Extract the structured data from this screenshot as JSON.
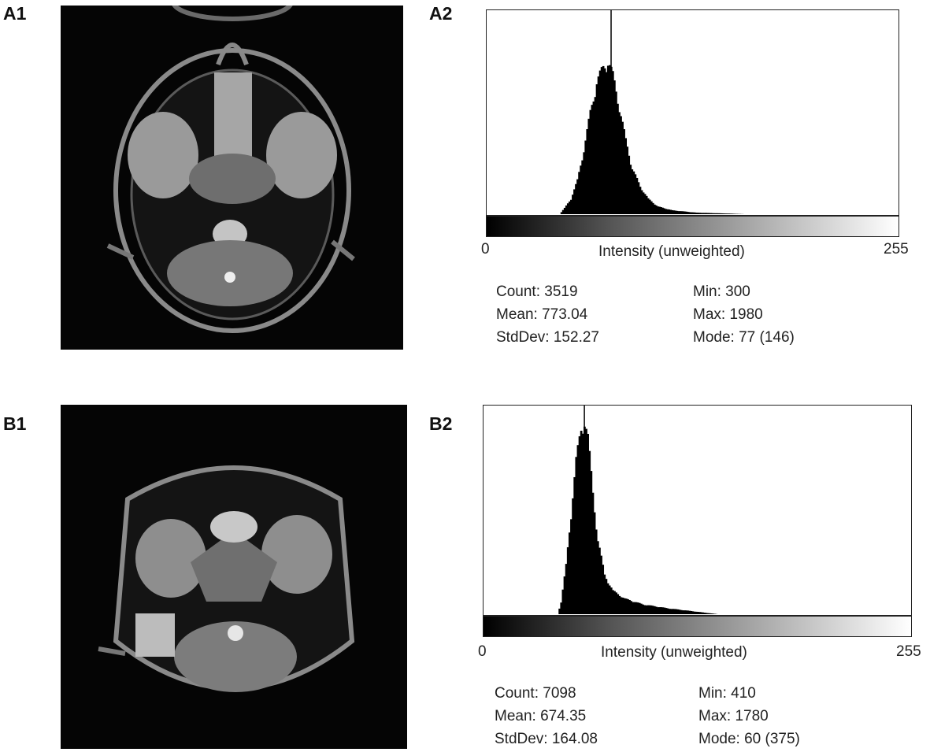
{
  "panels": {
    "a1": {
      "label": "A1"
    },
    "a2": {
      "label": "A2"
    },
    "b1": {
      "label": "B1"
    },
    "b2": {
      "label": "B2"
    }
  },
  "chart_data": [
    {
      "type": "bar",
      "panel": "A2",
      "title": "",
      "xlabel": "Intensity (unweighted)",
      "xlim": [
        0,
        255
      ],
      "x_tick_labels": [
        "0",
        "255"
      ],
      "mode_bin": 77,
      "peak_bin": 75,
      "distribution": [
        {
          "bin": 45,
          "rel_height": 0.0
        },
        {
          "bin": 48,
          "rel_height": 0.04
        },
        {
          "bin": 52,
          "rel_height": 0.1
        },
        {
          "bin": 56,
          "rel_height": 0.22
        },
        {
          "bin": 60,
          "rel_height": 0.42
        },
        {
          "bin": 64,
          "rel_height": 0.66
        },
        {
          "bin": 68,
          "rel_height": 0.86
        },
        {
          "bin": 72,
          "rel_height": 0.95
        },
        {
          "bin": 75,
          "rel_height": 1.0
        },
        {
          "bin": 78,
          "rel_height": 0.9
        },
        {
          "bin": 82,
          "rel_height": 0.7
        },
        {
          "bin": 86,
          "rel_height": 0.48
        },
        {
          "bin": 90,
          "rel_height": 0.3
        },
        {
          "bin": 95,
          "rel_height": 0.18
        },
        {
          "bin": 100,
          "rel_height": 0.1
        },
        {
          "bin": 106,
          "rel_height": 0.05
        },
        {
          "bin": 115,
          "rel_height": 0.025
        },
        {
          "bin": 130,
          "rel_height": 0.01
        },
        {
          "bin": 150,
          "rel_height": 0.004
        },
        {
          "bin": 160,
          "rel_height": 0.0
        }
      ],
      "stats": {
        "count": "Count: 3519",
        "mean": "Mean: 773.04",
        "stddev": "StdDev: 152.27",
        "min": "Min: 300",
        "max": "Max: 1980",
        "mode": "Mode: 77 (146)"
      }
    },
    {
      "type": "bar",
      "panel": "B2",
      "title": "",
      "xlabel": "Intensity (unweighted)",
      "xlim": [
        0,
        255
      ],
      "x_tick_labels": [
        "0",
        "255"
      ],
      "mode_bin": 60,
      "peak_bin": 60,
      "distribution": [
        {
          "bin": 44,
          "rel_height": 0.0
        },
        {
          "bin": 46,
          "rel_height": 0.06
        },
        {
          "bin": 49,
          "rel_height": 0.25
        },
        {
          "bin": 52,
          "rel_height": 0.52
        },
        {
          "bin": 55,
          "rel_height": 0.78
        },
        {
          "bin": 58,
          "rel_height": 0.95
        },
        {
          "bin": 60,
          "rel_height": 1.0
        },
        {
          "bin": 62,
          "rel_height": 0.9
        },
        {
          "bin": 65,
          "rel_height": 0.62
        },
        {
          "bin": 68,
          "rel_height": 0.38
        },
        {
          "bin": 72,
          "rel_height": 0.2
        },
        {
          "bin": 77,
          "rel_height": 0.12
        },
        {
          "bin": 84,
          "rel_height": 0.08
        },
        {
          "bin": 95,
          "rel_height": 0.05
        },
        {
          "bin": 110,
          "rel_height": 0.03
        },
        {
          "bin": 125,
          "rel_height": 0.015
        },
        {
          "bin": 140,
          "rel_height": 0.0
        }
      ],
      "stats": {
        "count": "Count: 7098",
        "mean": "Mean: 674.35",
        "stddev": "StdDev: 164.08",
        "min": "Min: 410",
        "max": "Max: 1780",
        "mode": "Mode: 60 (375)"
      }
    }
  ]
}
